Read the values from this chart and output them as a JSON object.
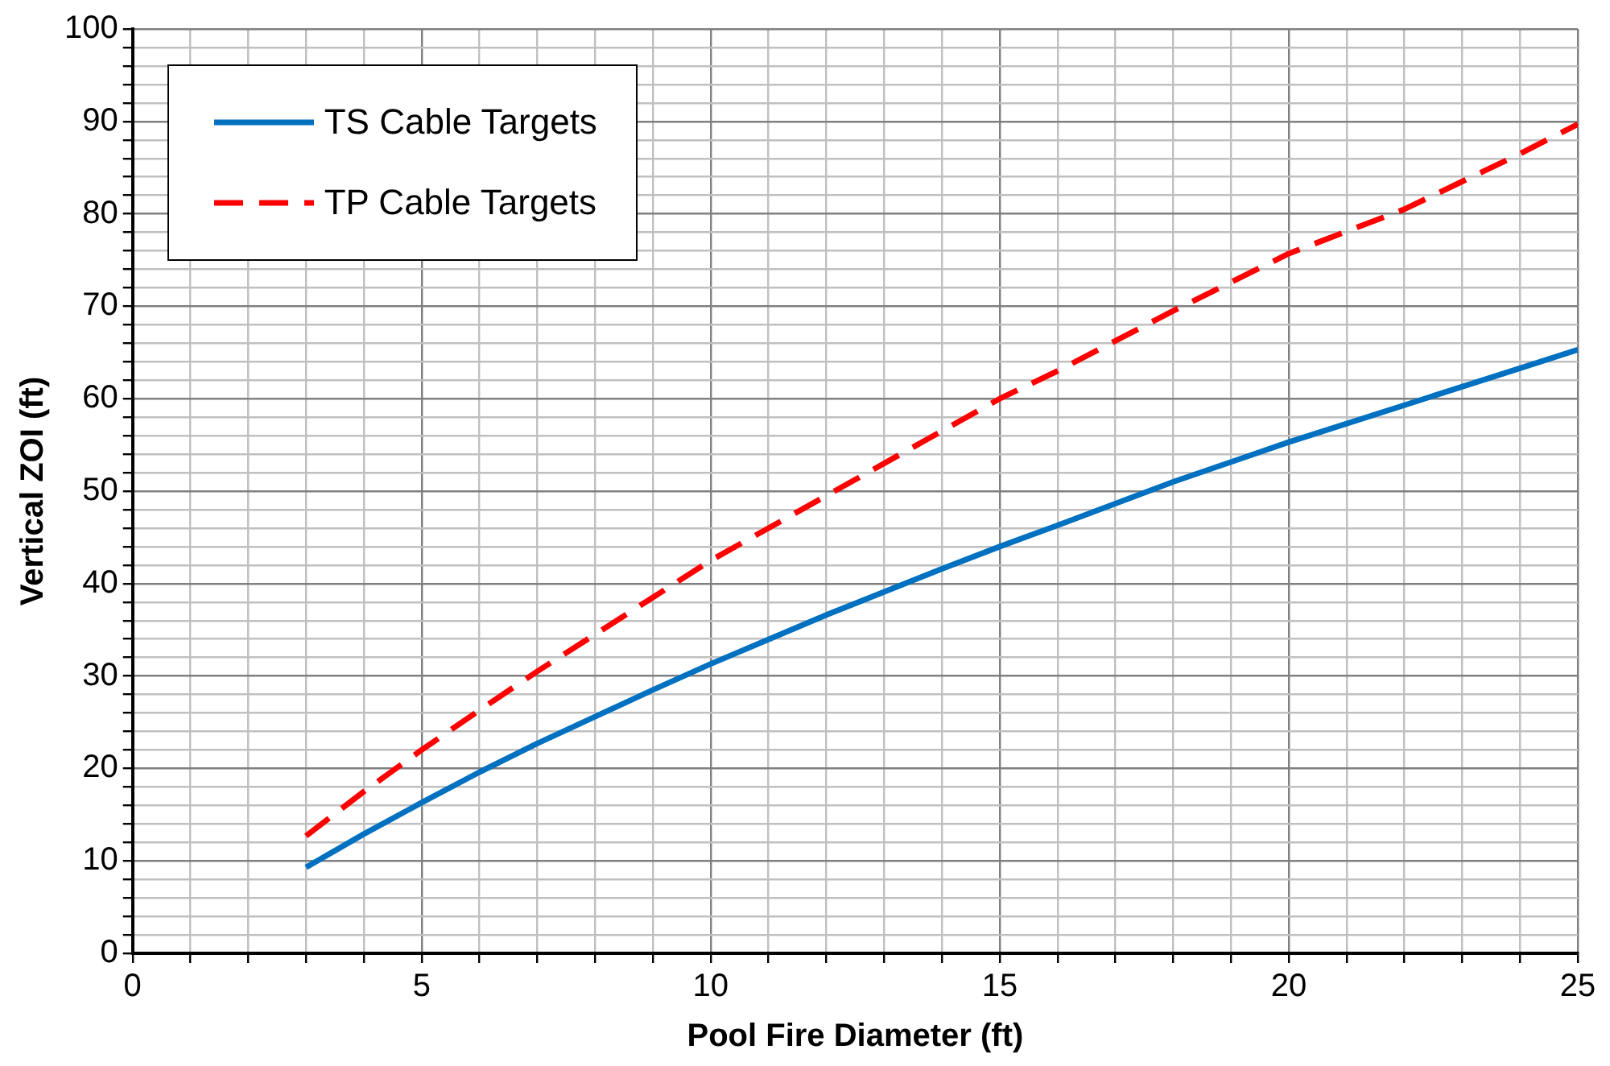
{
  "chart_data": {
    "type": "line",
    "xlabel": "Pool Fire Diameter (ft)",
    "ylabel": "Vertical ZOI (ft)",
    "xlim": [
      0,
      25
    ],
    "ylim": [
      0,
      100
    ],
    "xticks": [
      0,
      {
        "value": 1,
        "label": null
      },
      {
        "value": 2,
        "label": null
      },
      {
        "value": 3,
        "label": null
      },
      {
        "value": 4,
        "label": null
      },
      5,
      {
        "value": 6,
        "label": null
      },
      {
        "value": 7,
        "label": null
      },
      {
        "value": 8,
        "label": null
      },
      {
        "value": 9,
        "label": null
      },
      10,
      {
        "value": 11,
        "label": null
      },
      {
        "value": 12,
        "label": null
      },
      {
        "value": 13,
        "label": null
      },
      {
        "value": 14,
        "label": null
      },
      15,
      {
        "value": 16,
        "label": null
      },
      {
        "value": 17,
        "label": null
      },
      {
        "value": 18,
        "label": null
      },
      {
        "value": 19,
        "label": null
      },
      20,
      {
        "value": 21,
        "label": null
      },
      {
        "value": 22,
        "label": null
      },
      {
        "value": 23,
        "label": null
      },
      {
        "value": 24,
        "label": null
      },
      25
    ],
    "yticks": [
      0,
      {
        "value": 2,
        "label": null
      },
      {
        "value": 4,
        "label": null
      },
      {
        "value": 6,
        "label": null
      },
      {
        "value": 8,
        "label": null
      },
      10,
      {
        "value": 12,
        "label": null
      },
      {
        "value": 14,
        "label": null
      },
      {
        "value": 16,
        "label": null
      },
      {
        "value": 18,
        "label": null
      },
      20,
      {
        "value": 22,
        "label": null
      },
      {
        "value": 24,
        "label": null
      },
      {
        "value": 26,
        "label": null
      },
      {
        "value": 28,
        "label": null
      },
      30,
      {
        "value": 32,
        "label": null
      },
      {
        "value": 34,
        "label": null
      },
      {
        "value": 36,
        "label": null
      },
      {
        "value": 38,
        "label": null
      },
      40,
      {
        "value": 42,
        "label": null
      },
      {
        "value": 44,
        "label": null
      },
      {
        "value": 46,
        "label": null
      },
      {
        "value": 48,
        "label": null
      },
      50,
      {
        "value": 52,
        "label": null
      },
      {
        "value": 54,
        "label": null
      },
      {
        "value": 56,
        "label": null
      },
      {
        "value": 58,
        "label": null
      },
      60,
      {
        "value": 62,
        "label": null
      },
      {
        "value": 64,
        "label": null
      },
      {
        "value": 66,
        "label": null
      },
      {
        "value": 68,
        "label": null
      },
      70,
      {
        "value": 72,
        "label": null
      },
      {
        "value": 74,
        "label": null
      },
      {
        "value": 76,
        "label": null
      },
      {
        "value": 78,
        "label": null
      },
      80,
      {
        "value": 82,
        "label": null
      },
      {
        "value": 84,
        "label": null
      },
      {
        "value": 86,
        "label": null
      },
      {
        "value": 88,
        "label": null
      },
      90,
      {
        "value": 92,
        "label": null
      },
      {
        "value": 94,
        "label": null
      },
      {
        "value": 96,
        "label": null
      },
      {
        "value": 98,
        "label": null
      },
      100
    ],
    "grid": true,
    "legend": "top left",
    "marker": "none",
    "x": [
      3,
      4,
      5,
      6,
      7,
      8,
      9,
      10,
      12,
      14,
      15,
      16,
      18,
      20,
      22,
      24,
      25
    ],
    "series": [
      {
        "name": "TS Cable Targets",
        "color": "#0070c0",
        "line_style": "solid",
        "values": [
          9.3,
          12.9,
          16.3,
          19.6,
          22.7,
          25.6,
          28.5,
          31.3,
          36.6,
          41.6,
          44,
          46.3,
          51,
          55.3,
          59.3,
          63.3,
          65.3
        ]
      },
      {
        "name": "TP Cable Targets",
        "color": "#ff0000",
        "line_style": "dashed",
        "values": [
          12.7,
          17.5,
          22,
          26.3,
          30.5,
          34.5,
          38.5,
          42.5,
          49.5,
          56.5,
          60,
          63,
          69.5,
          75.7,
          80.5,
          86.5,
          89.7
        ]
      }
    ]
  }
}
